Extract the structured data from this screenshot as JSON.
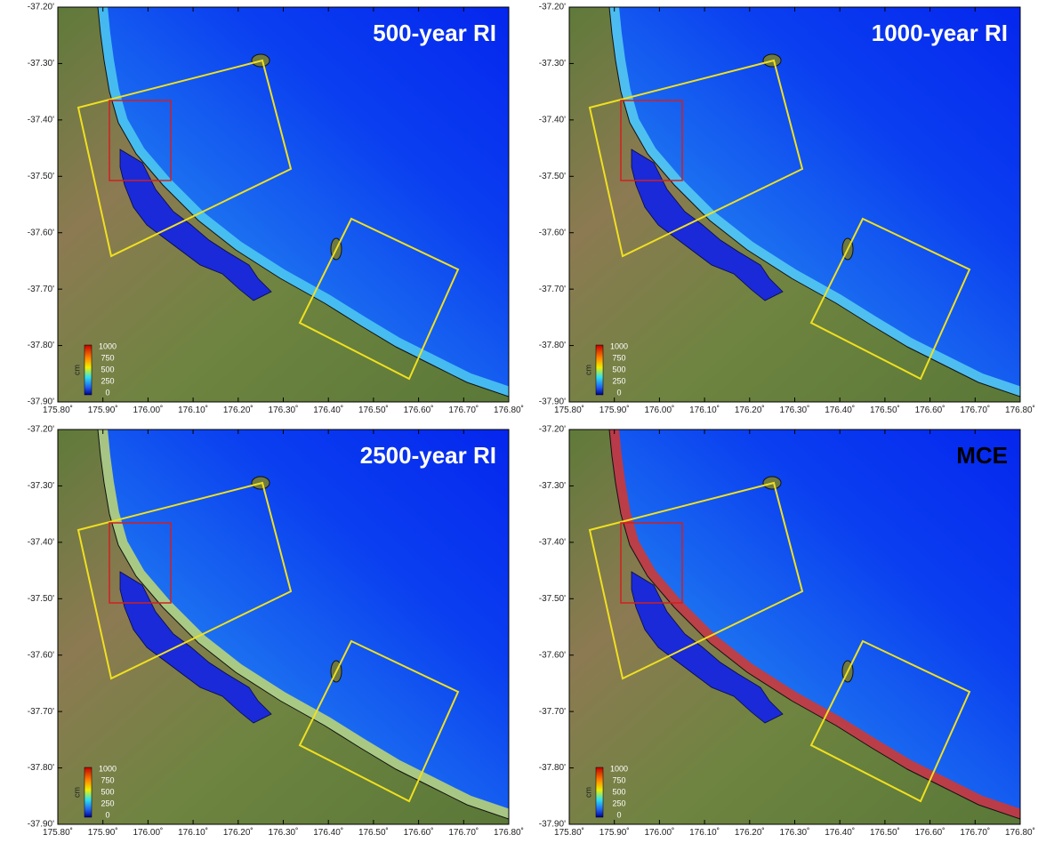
{
  "panels": [
    {
      "title": "500-year RI",
      "title_color": "#ffffff",
      "nearshore_color": "#55d8f0"
    },
    {
      "title": "1000-year RI",
      "title_color": "#ffffff",
      "nearshore_color": "#60dcf0"
    },
    {
      "title": "2500-year RI",
      "title_color": "#ffffff",
      "nearshore_color": "#d8e860"
    },
    {
      "title": "MCE",
      "title_color": "#000000",
      "nearshore_color": "#f03010"
    }
  ],
  "y_tick_labels": [
    "-37.20'",
    "-37.30'",
    "-37.40'",
    "-37.50'",
    "-37.60'",
    "-37.70'",
    "-37.80'",
    "-37.90'"
  ],
  "x_tick_labels": [
    "175.80˚",
    "175.90˚",
    "176.00˚",
    "176.10˚",
    "176.20˚",
    "176.30˚",
    "176.40˚",
    "176.50˚",
    "176.60˚",
    "176.70˚",
    "176.80˚"
  ],
  "colorbar": {
    "unit": "cm",
    "tick_labels": [
      "1000",
      "750",
      "500",
      "250",
      "0"
    ]
  }
}
